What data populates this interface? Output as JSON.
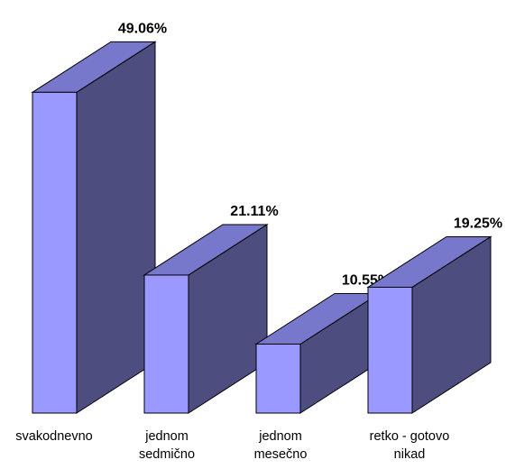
{
  "chart_data": {
    "type": "bar",
    "style": "3d-column",
    "categories": [
      [
        "svakodnevno"
      ],
      [
        "jednom",
        "sedmično"
      ],
      [
        "jednom",
        "mesečno"
      ],
      [
        "retko - gotovo",
        "nikad"
      ]
    ],
    "values": [
      49.06,
      21.11,
      10.55,
      19.25
    ],
    "value_labels": [
      "49.06%",
      "21.11%",
      "10.55%",
      "19.25%"
    ],
    "title": "",
    "xlabel": "",
    "ylabel": "",
    "ylim": [
      0,
      50
    ],
    "grid": false,
    "legend": "none",
    "colors": {
      "front": "#9999ff",
      "top": "#7777cc",
      "side": "#4d4d80",
      "outline": "#000000"
    }
  }
}
